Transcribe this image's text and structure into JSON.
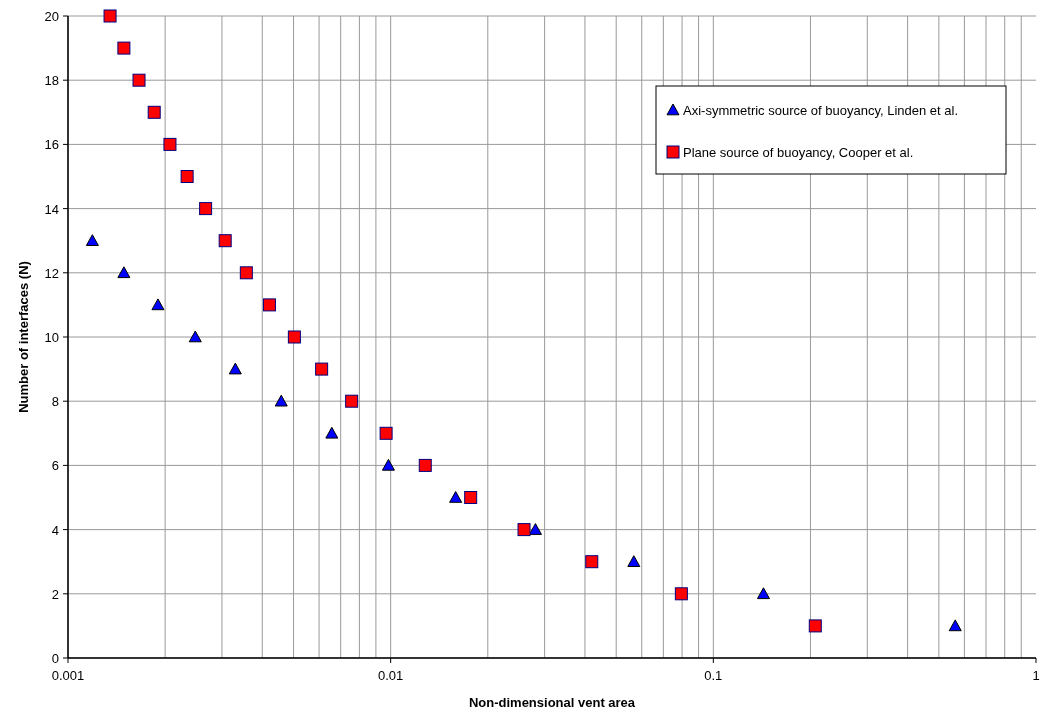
{
  "chart_data": {
    "type": "scatter",
    "xlabel": "Non-dimensional vent area",
    "ylabel": "Number of interfaces (N)",
    "log": "x",
    "grid": true,
    "legend": "top right",
    "xlim": [
      0.001,
      1
    ],
    "xticks": [
      0.001,
      0.01,
      0.1,
      1
    ],
    "ylim": [
      0,
      20
    ],
    "yticks": [
      0,
      2,
      4,
      6,
      8,
      10,
      12,
      14,
      16,
      18,
      20
    ],
    "series": [
      {
        "name": "Axi-symmetric source of buoyancy, Linden et al.",
        "color": "#0000ff",
        "marker": "triangle",
        "x": [
          0.00119,
          0.00149,
          0.0019,
          0.00248,
          0.0033,
          0.00458,
          0.00657,
          0.00984,
          0.0159,
          0.0281,
          0.0567,
          0.143,
          0.562
        ],
        "values": [
          13,
          12,
          11,
          10,
          9,
          8,
          7,
          6,
          5,
          4,
          3,
          2,
          1
        ]
      },
      {
        "name": "Plane source of buoyancy, Cooper et al.",
        "color": "#ff0000",
        "marker": "square",
        "x": [
          0.00135,
          0.00149,
          0.00166,
          0.00185,
          0.00207,
          0.00234,
          0.00267,
          0.00307,
          0.00357,
          0.00421,
          0.00503,
          0.00611,
          0.00757,
          0.00968,
          0.0128,
          0.0177,
          0.0259,
          0.042,
          0.0796,
          0.207
        ],
        "values": [
          20,
          19,
          18,
          17,
          16,
          15,
          14,
          13,
          12,
          11,
          10,
          9,
          8,
          7,
          6,
          5,
          4,
          3,
          2,
          1
        ]
      }
    ]
  }
}
